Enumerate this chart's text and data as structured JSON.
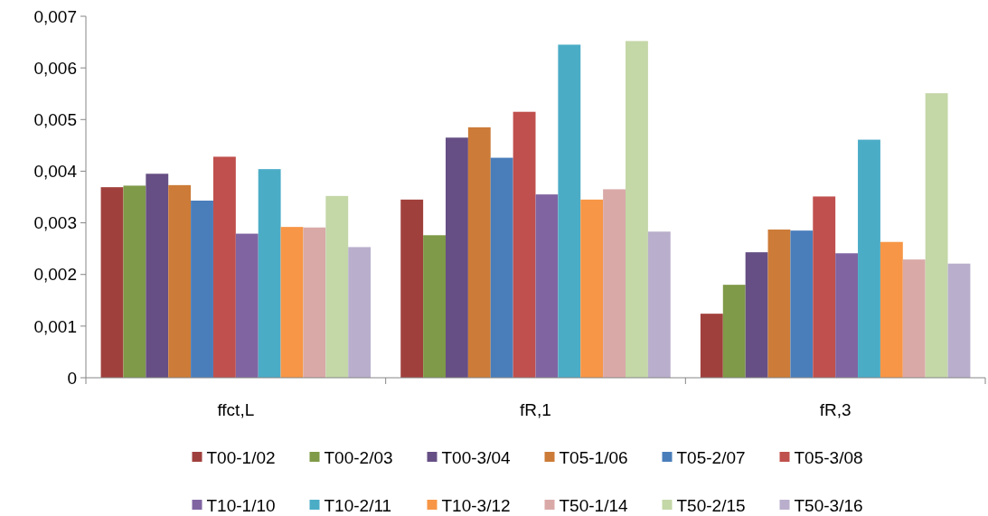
{
  "chart_data": {
    "type": "bar",
    "categories": [
      "ffct,L",
      "fR,1",
      "fR,3"
    ],
    "series": [
      {
        "name": "T00-1/02",
        "color": "#a0403d",
        "values": [
          0.00369,
          0.00345,
          0.00124
        ]
      },
      {
        "name": "T00-2/03",
        "color": "#7f9a48",
        "values": [
          0.00372,
          0.00276,
          0.0018
        ]
      },
      {
        "name": "T00-3/04",
        "color": "#664f84",
        "values": [
          0.00395,
          0.00465,
          0.00243
        ]
      },
      {
        "name": "T05-1/06",
        "color": "#cc7b38",
        "values": [
          0.00373,
          0.00485,
          0.00287
        ]
      },
      {
        "name": "T05-2/07",
        "color": "#4a7ebb",
        "values": [
          0.00343,
          0.00426,
          0.00285
        ]
      },
      {
        "name": "T05-3/08",
        "color": "#c0504d",
        "values": [
          0.00428,
          0.00515,
          0.00351
        ]
      },
      {
        "name": "T10-1/10",
        "color": "#8064a2",
        "values": [
          0.00279,
          0.00355,
          0.00241
        ]
      },
      {
        "name": "T10-2/11",
        "color": "#4bacc6",
        "values": [
          0.00404,
          0.00645,
          0.00461
        ]
      },
      {
        "name": "T10-3/12",
        "color": "#f79646",
        "values": [
          0.00292,
          0.00345,
          0.00263
        ]
      },
      {
        "name": "T50-1/14",
        "color": "#d9a9a8",
        "values": [
          0.00291,
          0.00365,
          0.00229
        ]
      },
      {
        "name": "T50-2/15",
        "color": "#c4d7a7",
        "values": [
          0.00352,
          0.00652,
          0.00551
        ]
      },
      {
        "name": "T50-3/16",
        "color": "#b9afcc",
        "values": [
          0.00253,
          0.00283,
          0.00221
        ]
      }
    ],
    "ylim": [
      0,
      0.007
    ],
    "yticks": [
      0,
      {
        "value": 0.001,
        "label": "0,001"
      },
      {
        "value": 0.002,
        "label": "0,002"
      },
      {
        "value": 0.003,
        "label": "0,003"
      },
      {
        "value": 0.004,
        "label": "0,004"
      },
      {
        "value": 0.005,
        "label": "0,005"
      },
      {
        "value": 0.006,
        "label": "0,006"
      },
      {
        "value": 0.007,
        "label": "0,007"
      }
    ],
    "grid": false,
    "legend": "bottom"
  }
}
